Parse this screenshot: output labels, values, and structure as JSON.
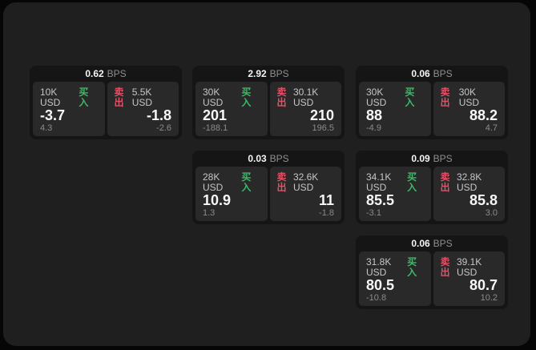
{
  "labels": {
    "bps_suffix": "BPS",
    "buy": "买入",
    "sell": "卖出"
  },
  "colors": {
    "outer_background": "#060606",
    "surface_background": "#1f1f20",
    "card_background": "#151516",
    "panel_background": "#29292a",
    "buy_green": "#40b869",
    "sell_red": "#dd5468",
    "price_text": "#f7f7f7",
    "muted_text": "#8b8b8d"
  },
  "cards": [
    {
      "spread": "0.62",
      "col": 1,
      "row": 1,
      "buy": {
        "amount": "10K USD",
        "price": "-3.7",
        "delta": "4.3"
      },
      "sell": {
        "amount": "5.5K USD",
        "price": "-1.8",
        "delta": "-2.6"
      }
    },
    {
      "spread": "2.92",
      "col": 2,
      "row": 1,
      "buy": {
        "amount": "30K USD",
        "price": "201",
        "delta": "-188.1"
      },
      "sell": {
        "amount": "30.1K USD",
        "price": "210",
        "delta": "196.5"
      }
    },
    {
      "spread": "0.06",
      "col": 3,
      "row": 1,
      "buy": {
        "amount": "30K USD",
        "price": "88",
        "delta": "-4.9"
      },
      "sell": {
        "amount": "30K USD",
        "price": "88.2",
        "delta": "4.7"
      }
    },
    {
      "spread": "0.03",
      "col": 2,
      "row": 2,
      "buy": {
        "amount": "28K USD",
        "price": "10.9",
        "delta": "1.3"
      },
      "sell": {
        "amount": "32.6K USD",
        "price": "11",
        "delta": "-1.8"
      }
    },
    {
      "spread": "0.09",
      "col": 3,
      "row": 2,
      "buy": {
        "amount": "34.1K USD",
        "price": "85.5",
        "delta": "-3.1"
      },
      "sell": {
        "amount": "32.8K USD",
        "price": "85.8",
        "delta": "3.0"
      }
    },
    {
      "spread": "0.06",
      "col": 3,
      "row": 3,
      "buy": {
        "amount": "31.8K USD",
        "price": "80.5",
        "delta": "-10.8"
      },
      "sell": {
        "amount": "39.1K USD",
        "price": "80.7",
        "delta": "10.2"
      }
    }
  ]
}
